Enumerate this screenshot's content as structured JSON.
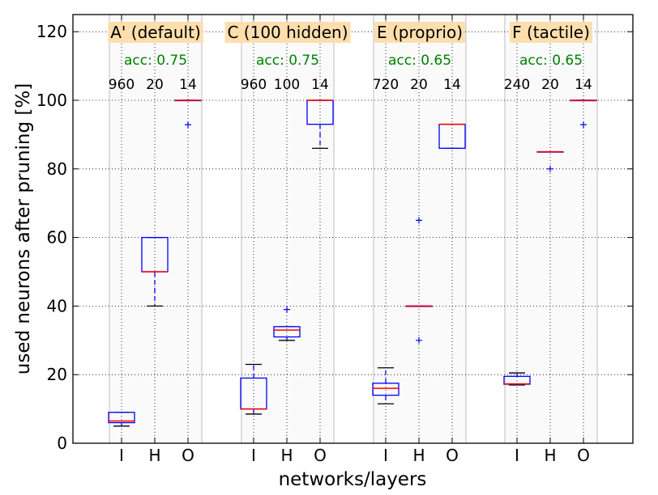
{
  "chart_data": {
    "type": "box",
    "xlabel": "networks/layers",
    "ylabel": "used neurons after pruning [%]",
    "ylim": [
      0,
      125
    ],
    "yticks": [
      0,
      20,
      40,
      60,
      80,
      100,
      120
    ],
    "grid": true,
    "colors": {
      "box": "#0000ff",
      "median": "#ff0000",
      "title_bg": "#ffdead",
      "acc_text": "#008000",
      "group_bg": "#fafafa",
      "separator": "#c8c8c8"
    },
    "groups": [
      {
        "title": "A' (default)",
        "accuracy": "acc: 0.75",
        "layers": [
          {
            "label": "I",
            "count": "960",
            "whisker_low": 5,
            "q1": 6,
            "median": 6.5,
            "q3": 9,
            "whisker_high": 9,
            "outliers": []
          },
          {
            "label": "H",
            "count": "20",
            "whisker_low": 40,
            "q1": 50,
            "median": 50,
            "q3": 60,
            "whisker_high": 60,
            "outliers": []
          },
          {
            "label": "O",
            "count": "14",
            "whisker_low": 100,
            "q1": 100,
            "median": 100,
            "q3": 100,
            "whisker_high": 100,
            "outliers": [
              92.9
            ]
          }
        ]
      },
      {
        "title": "C (100 hidden)",
        "accuracy": "acc: 0.75",
        "layers": [
          {
            "label": "I",
            "count": "960",
            "whisker_low": 8.5,
            "q1": 10,
            "median": 10,
            "q3": 19,
            "whisker_high": 23,
            "outliers": []
          },
          {
            "label": "H",
            "count": "100",
            "whisker_low": 30,
            "q1": 31,
            "median": 33,
            "q3": 34,
            "whisker_high": 34,
            "outliers": [
              39
            ]
          },
          {
            "label": "O",
            "count": "14",
            "whisker_low": 86,
            "q1": 93,
            "median": 100,
            "q3": 100,
            "whisker_high": 100,
            "outliers": []
          }
        ]
      },
      {
        "title": "E (proprio)",
        "accuracy": "acc: 0.65",
        "layers": [
          {
            "label": "I",
            "count": "720",
            "whisker_low": 11.5,
            "q1": 14,
            "median": 16,
            "q3": 17.5,
            "whisker_high": 22,
            "outliers": []
          },
          {
            "label": "H",
            "count": "20",
            "whisker_low": 40,
            "q1": 40,
            "median": 40,
            "q3": 40,
            "whisker_high": 40,
            "outliers": [
              65,
              30
            ]
          },
          {
            "label": "O",
            "count": "14",
            "whisker_low": 86,
            "q1": 86,
            "median": 93,
            "q3": 93,
            "whisker_high": 93,
            "outliers": []
          }
        ]
      },
      {
        "title": "F (tactile)",
        "accuracy": "acc: 0.65",
        "layers": [
          {
            "label": "I",
            "count": "240",
            "whisker_low": 17,
            "q1": 17.2,
            "median": 17.3,
            "q3": 19.5,
            "whisker_high": 20.5,
            "outliers": []
          },
          {
            "label": "H",
            "count": "20",
            "whisker_low": 85,
            "q1": 85,
            "median": 85,
            "q3": 85,
            "whisker_high": 85,
            "outliers": [
              80
            ]
          },
          {
            "label": "O",
            "count": "14",
            "whisker_low": 100,
            "q1": 100,
            "median": 100,
            "q3": 100,
            "whisker_high": 100,
            "outliers": [
              92.9
            ]
          }
        ]
      }
    ]
  }
}
